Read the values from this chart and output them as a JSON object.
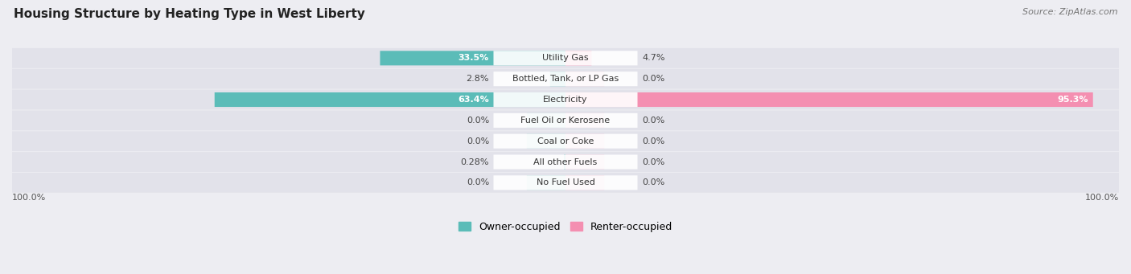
{
  "title": "Housing Structure by Heating Type in West Liberty",
  "source": "Source: ZipAtlas.com",
  "categories": [
    "Utility Gas",
    "Bottled, Tank, or LP Gas",
    "Electricity",
    "Fuel Oil or Kerosene",
    "Coal or Coke",
    "All other Fuels",
    "No Fuel Used"
  ],
  "owner_values": [
    33.5,
    2.8,
    63.4,
    0.0,
    0.0,
    0.28,
    0.0
  ],
  "renter_values": [
    4.7,
    0.0,
    95.3,
    0.0,
    0.0,
    0.0,
    0.0
  ],
  "owner_color": "#5bbcb8",
  "renter_color": "#f48fb1",
  "owner_label": "Owner-occupied",
  "renter_label": "Renter-occupied",
  "owner_text_values": [
    "33.5%",
    "2.8%",
    "63.4%",
    "0.0%",
    "0.0%",
    "0.28%",
    "0.0%"
  ],
  "renter_text_values": [
    "4.7%",
    "0.0%",
    "95.3%",
    "0.0%",
    "0.0%",
    "0.0%",
    "0.0%"
  ],
  "max_val": 100.0,
  "stub_val": 7.0,
  "background_color": "#ededf2",
  "row_bg_color": "#e2e2ea",
  "title_fontsize": 11,
  "source_fontsize": 8,
  "bar_label_fontsize": 8,
  "category_fontsize": 8
}
